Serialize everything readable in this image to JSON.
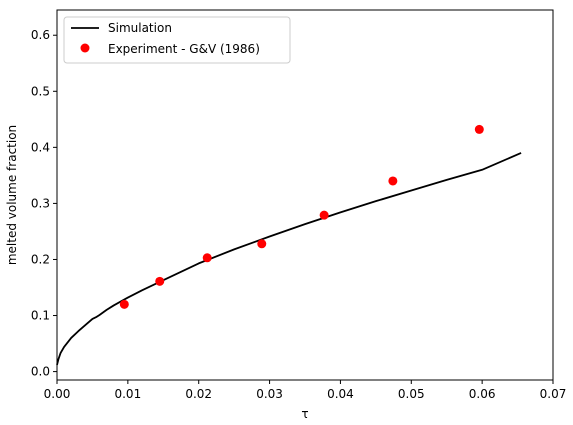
{
  "chart_data": {
    "type": "line",
    "xlabel": "τ",
    "ylabel": "melted volume fraction",
    "xlim": [
      0.0,
      0.07
    ],
    "ylim": [
      -0.015,
      0.645
    ],
    "xticks": [
      0.0,
      0.01,
      0.02,
      0.03,
      0.04,
      0.05,
      0.06,
      0.07
    ],
    "xtick_labels": [
      "0.00",
      "0.01",
      "0.02",
      "0.03",
      "0.04",
      "0.05",
      "0.06",
      "0.07"
    ],
    "yticks": [
      0.0,
      0.1,
      0.2,
      0.3,
      0.4,
      0.5,
      0.6
    ],
    "ytick_labels": [
      "0.0",
      "0.1",
      "0.2",
      "0.3",
      "0.4",
      "0.5",
      "0.6"
    ],
    "grid": false,
    "legend_position": "top-left",
    "series": [
      {
        "name": "Simulation",
        "kind": "line",
        "color": "#000000",
        "x": [
          0.0,
          0.0002,
          0.0005,
          0.001,
          0.0015,
          0.002,
          0.003,
          0.004,
          0.005,
          0.0055,
          0.006,
          0.007,
          0.008,
          0.01,
          0.012,
          0.015,
          0.02,
          0.025,
          0.03,
          0.035,
          0.04,
          0.045,
          0.05,
          0.055,
          0.06,
          0.0655
        ],
        "y": [
          0.012,
          0.022,
          0.033,
          0.044,
          0.052,
          0.06,
          0.072,
          0.083,
          0.094,
          0.097,
          0.101,
          0.11,
          0.118,
          0.132,
          0.145,
          0.163,
          0.193,
          0.218,
          0.241,
          0.263,
          0.284,
          0.304,
          0.323,
          0.342,
          0.36,
          0.39
        ]
      },
      {
        "name": "Experiment - G&V (1986)",
        "kind": "scatter",
        "color": "#ff0000",
        "x": [
          0.0095,
          0.0145,
          0.0212,
          0.0289,
          0.0377,
          0.0474,
          0.0596
        ],
        "y": [
          0.12,
          0.161,
          0.203,
          0.228,
          0.279,
          0.34,
          0.432
        ]
      }
    ]
  }
}
